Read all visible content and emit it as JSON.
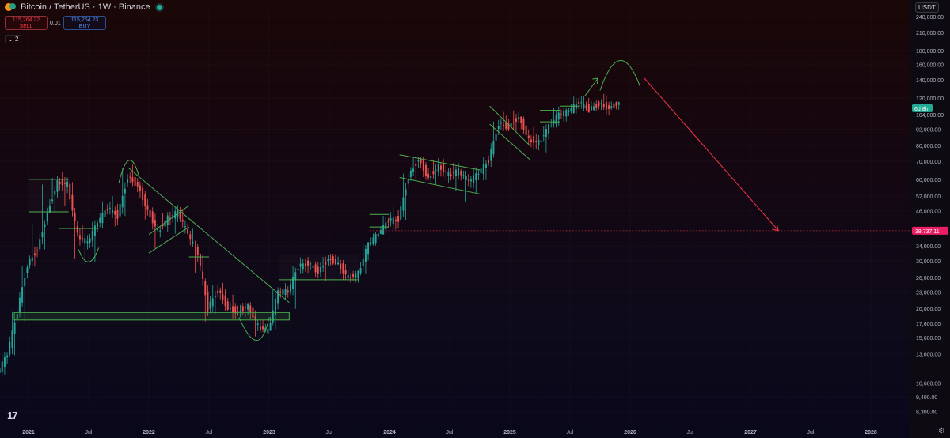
{
  "header": {
    "symbol": "Bitcoin / TetherUS · 1W · Binance",
    "sell_price": "115,264.22",
    "sell_label": "SELL",
    "spread": "0.01",
    "buy_price": "115,264.23",
    "buy_label": "BUY",
    "indicators_count": "2",
    "currency": "USDT"
  },
  "colors": {
    "up": "#26a69a",
    "down": "#ef5350",
    "annotation": "#4caf50",
    "projection": "#f23645",
    "price_tag": "#e91e63",
    "time_tag": "#22ab94"
  },
  "chart_data": {
    "type": "candlestick",
    "scale": "log",
    "x_range": [
      "2020-10",
      "2028-03"
    ],
    "y_range": [
      7600,
      270000
    ],
    "y_ticks": [
      {
        "label": "240,000.00",
        "value": 240000
      },
      {
        "label": "210,000.00",
        "value": 210000
      },
      {
        "label": "180,000.00",
        "value": 180000
      },
      {
        "label": "160,000.00",
        "value": 160000
      },
      {
        "label": "140,000.00",
        "value": 140000
      },
      {
        "label": "120,000.00",
        "value": 120000
      },
      {
        "label": "104,000.00",
        "value": 104000
      },
      {
        "label": "92,000.00",
        "value": 92000
      },
      {
        "label": "80,000.00",
        "value": 80000
      },
      {
        "label": "70,000.00",
        "value": 70000
      },
      {
        "label": "60,000.00",
        "value": 60000
      },
      {
        "label": "52,000.00",
        "value": 52000
      },
      {
        "label": "46,000.00",
        "value": 46000
      },
      {
        "label": "34,000.00",
        "value": 34000
      },
      {
        "label": "30,000.00",
        "value": 30000
      },
      {
        "label": "26,000.00",
        "value": 26000
      },
      {
        "label": "23,000.00",
        "value": 23000
      },
      {
        "label": "20,000.00",
        "value": 20000
      },
      {
        "label": "17,600.00",
        "value": 17600
      },
      {
        "label": "15,600.00",
        "value": 15600
      },
      {
        "label": "13,600.00",
        "value": 13600
      },
      {
        "label": "10,600.00",
        "value": 10600
      },
      {
        "label": "9,400.00",
        "value": 9400
      },
      {
        "label": "8,300.00",
        "value": 8300
      }
    ],
    "x_ticks": [
      {
        "label": "2021",
        "date": "2021-01"
      },
      {
        "label": "Jul",
        "date": "2021-07"
      },
      {
        "label": "2022",
        "date": "2022-01"
      },
      {
        "label": "Jul",
        "date": "2022-07"
      },
      {
        "label": "2023",
        "date": "2023-01"
      },
      {
        "label": "Jul",
        "date": "2023-07"
      },
      {
        "label": "2024",
        "date": "2024-01"
      },
      {
        "label": "Jul",
        "date": "2024-07"
      },
      {
        "label": "2025",
        "date": "2025-01"
      },
      {
        "label": "Jul",
        "date": "2025-07"
      },
      {
        "label": "2026",
        "date": "2026-01"
      },
      {
        "label": "Jul",
        "date": "2026-07"
      },
      {
        "label": "2027",
        "date": "2027-01"
      },
      {
        "label": "Jul",
        "date": "2027-07"
      },
      {
        "label": "2028",
        "date": "2028-01"
      }
    ],
    "price_line": {
      "value": 38737.11,
      "label": "38,737.11"
    },
    "time_tag": {
      "value": 110000,
      "label": "6d 8h"
    },
    "candles": [
      [
        "2020-10",
        11500,
        13800,
        11200,
        13500
      ],
      [
        "2020-11",
        13500,
        19800,
        13200,
        19400
      ],
      [
        "2020-12",
        19400,
        29000,
        17600,
        28900
      ],
      [
        "2021-01",
        28900,
        41900,
        28100,
        33100
      ],
      [
        "2021-02",
        33100,
        58300,
        32500,
        45200
      ],
      [
        "2021-03",
        45200,
        61700,
        44900,
        58800
      ],
      [
        "2021-04",
        58800,
        64800,
        47000,
        57700
      ],
      [
        "2021-05",
        57700,
        59500,
        30000,
        37300
      ],
      [
        "2021-06",
        37300,
        41300,
        28800,
        35000
      ],
      [
        "2021-07",
        35000,
        42400,
        29200,
        41500
      ],
      [
        "2021-08",
        41500,
        50500,
        37300,
        47100
      ],
      [
        "2021-09",
        47100,
        52900,
        39600,
        43800
      ],
      [
        "2021-10",
        43800,
        66900,
        43300,
        61300
      ],
      [
        "2021-11",
        61300,
        69000,
        53300,
        57000
      ],
      [
        "2021-12",
        57000,
        59000,
        42000,
        46200
      ],
      [
        "2022-01",
        46200,
        48000,
        32900,
        38500
      ],
      [
        "2022-02",
        38500,
        45800,
        34300,
        43200
      ],
      [
        "2022-03",
        43200,
        48200,
        37200,
        45500
      ],
      [
        "2022-04",
        45500,
        47400,
        37600,
        37600
      ],
      [
        "2022-05",
        37600,
        40000,
        26700,
        31800
      ],
      [
        "2022-06",
        31800,
        31900,
        17600,
        19900
      ],
      [
        "2022-07",
        19900,
        24700,
        18800,
        23300
      ],
      [
        "2022-08",
        23300,
        25200,
        19600,
        20000
      ],
      [
        "2022-09",
        20000,
        22800,
        18100,
        19400
      ],
      [
        "2022-10",
        19400,
        21000,
        18200,
        20500
      ],
      [
        "2022-11",
        20500,
        21500,
        15500,
        17200
      ],
      [
        "2022-12",
        17200,
        18400,
        16300,
        16500
      ],
      [
        "2023-01",
        16500,
        23900,
        16500,
        23100
      ],
      [
        "2023-02",
        23100,
        25300,
        21300,
        23100
      ],
      [
        "2023-03",
        23100,
        29200,
        19600,
        28500
      ],
      [
        "2023-04",
        28500,
        31000,
        26900,
        29200
      ],
      [
        "2023-05",
        29200,
        29800,
        25800,
        27200
      ],
      [
        "2023-06",
        27200,
        31400,
        24800,
        30500
      ],
      [
        "2023-07",
        30500,
        31800,
        28900,
        29200
      ],
      [
        "2023-08",
        29200,
        30200,
        25200,
        26000
      ],
      [
        "2023-09",
        26000,
        27500,
        24900,
        27000
      ],
      [
        "2023-10",
        27000,
        35200,
        26500,
        34600
      ],
      [
        "2023-11",
        34600,
        38400,
        34100,
        37700
      ],
      [
        "2023-12",
        37700,
        44700,
        37600,
        42300
      ],
      [
        "2024-01",
        42300,
        48900,
        38500,
        42600
      ],
      [
        "2024-02",
        42600,
        64000,
        41900,
        61200
      ],
      [
        "2024-03",
        61200,
        73800,
        59300,
        71300
      ],
      [
        "2024-04",
        71300,
        72800,
        59600,
        60700
      ],
      [
        "2024-05",
        60700,
        71900,
        56600,
        67500
      ],
      [
        "2024-06",
        67500,
        71900,
        58400,
        62700
      ],
      [
        "2024-07",
        62700,
        70000,
        53500,
        64600
      ],
      [
        "2024-08",
        64600,
        65600,
        49000,
        59000
      ],
      [
        "2024-09",
        59000,
        66500,
        52500,
        63300
      ],
      [
        "2024-10",
        63300,
        73600,
        58900,
        70200
      ],
      [
        "2024-11",
        70200,
        99800,
        66800,
        96400
      ],
      [
        "2024-12",
        96400,
        108300,
        90500,
        93400
      ],
      [
        "2025-01",
        93400,
        109600,
        89200,
        102400
      ],
      [
        "2025-02",
        102400,
        102500,
        78200,
        84300
      ],
      [
        "2025-03",
        84300,
        95000,
        76600,
        82500
      ],
      [
        "2025-04",
        82500,
        95800,
        74400,
        94200
      ],
      [
        "2025-05",
        94200,
        111900,
        93300,
        104600
      ],
      [
        "2025-06",
        104600,
        110500,
        98200,
        107100
      ],
      [
        "2025-07",
        107100,
        123200,
        105100,
        115700
      ],
      [
        "2025-08",
        115700,
        124400,
        107300,
        108200
      ],
      [
        "2025-09",
        108200,
        117400,
        107200,
        114000
      ],
      [
        "2025-10",
        114000,
        126200,
        104000,
        110200
      ],
      [
        "2025-11",
        110200,
        116500,
        108600,
        115264
      ]
    ]
  }
}
